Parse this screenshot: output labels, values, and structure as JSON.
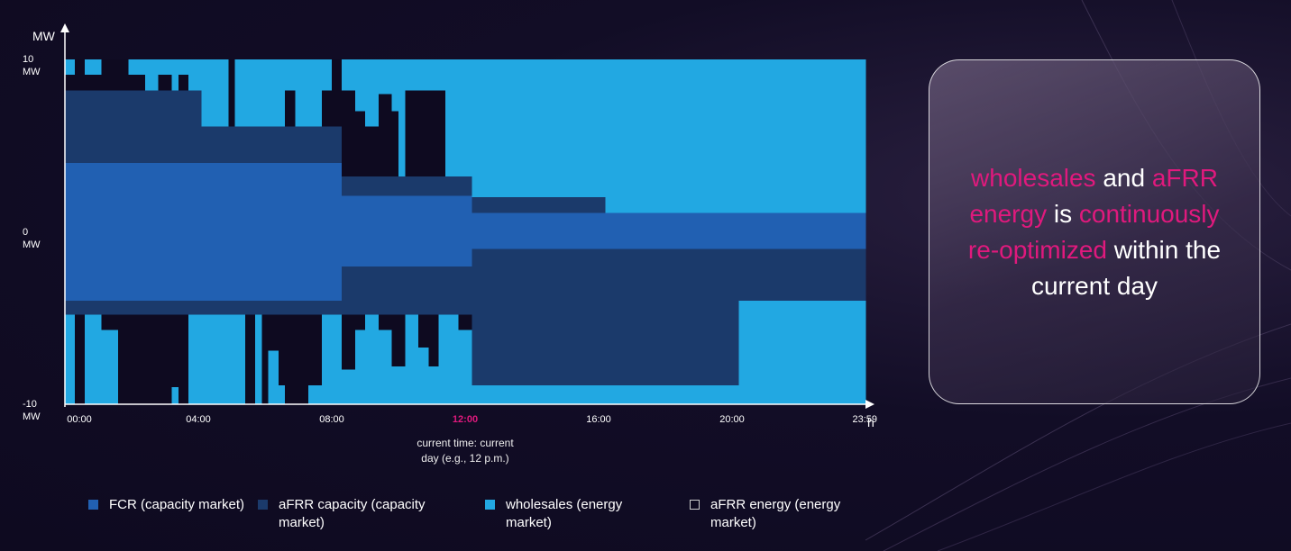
{
  "chart_data": {
    "type": "stacked-step",
    "y_label": "MW",
    "x_label": "h",
    "xlim": [
      0,
      24
    ],
    "ylim": [
      -10,
      10
    ],
    "xticks": [
      {
        "value": 0,
        "label": "00:00"
      },
      {
        "value": 4,
        "label": "04:00"
      },
      {
        "value": 8,
        "label": "08:00"
      },
      {
        "value": 12,
        "label": "12:00"
      },
      {
        "value": 16,
        "label": "16:00"
      },
      {
        "value": 20,
        "label": "20:00"
      },
      {
        "value": 23.98,
        "label": "23:59"
      }
    ],
    "yticks": [
      {
        "value": 10,
        "label": "10 MW"
      },
      {
        "value": 0,
        "label": "0 MW"
      },
      {
        "value": -10,
        "label": "-10 MW"
      }
    ],
    "annotation": {
      "x": 12,
      "text": "current time: current day (e.g., 12 p.m.)",
      "color": "#e0197d"
    },
    "x": [
      0,
      0.3,
      0.6,
      1.1,
      1.6,
      1.9,
      2.4,
      2.8,
      3.2,
      3.4,
      3.7,
      4.1,
      4.9,
      5.1,
      5.4,
      5.7,
      5.9,
      6.1,
      6.4,
      6.6,
      6.9,
      7.3,
      7.7,
      8.0,
      8.3,
      8.7,
      9.0,
      9.4,
      9.8,
      10.0,
      10.2,
      10.6,
      10.9,
      11.2,
      11.4,
      11.8,
      12.2,
      16.2,
      20.2,
      24
    ],
    "series": [
      {
        "name": "FCR (capacity market)",
        "color": "#2160b2",
        "up": [
          4,
          4,
          4,
          4,
          4,
          4,
          4,
          4,
          4,
          4,
          4,
          4,
          4,
          4,
          4,
          4,
          4,
          4,
          4,
          4,
          4,
          4,
          4,
          4,
          2.1,
          2.1,
          2.1,
          2.1,
          2.1,
          2.1,
          2.1,
          2.1,
          2.1,
          2.1,
          2.1,
          2.1,
          1.1,
          1.1,
          1.1
        ],
        "down": [
          -4,
          -4,
          -4,
          -4,
          -4,
          -4,
          -4,
          -4,
          -4,
          -4,
          -4,
          -4,
          -4,
          -4,
          -4,
          -4,
          -4,
          -4,
          -4,
          -4,
          -4,
          -4,
          -4,
          -4,
          -2,
          -2,
          -2,
          -2,
          -2,
          -2,
          -2,
          -2,
          -2,
          -2,
          -2,
          -2,
          -1,
          -1,
          -1
        ]
      },
      {
        "name": "aFRR capacity (capacity market)",
        "color": "#1b3a6b",
        "up": [
          4.2,
          4.2,
          4.2,
          4.2,
          4.2,
          4.2,
          4.2,
          4.2,
          4.2,
          4.2,
          4.2,
          2.1,
          2.1,
          2.1,
          2.1,
          2.1,
          2.1,
          2.1,
          2.1,
          2.1,
          2.1,
          2.1,
          2.1,
          2.1,
          1.1,
          1.1,
          1.1,
          1.1,
          1.1,
          1.1,
          1.1,
          1.1,
          1.1,
          1.1,
          1.1,
          1.1,
          0.9,
          0,
          0
        ],
        "down": [
          -0.8,
          -0.8,
          -0.8,
          -0.8,
          -0.8,
          -0.8,
          -0.8,
          -0.8,
          -0.8,
          -0.8,
          -0.8,
          -0.8,
          -0.8,
          -0.8,
          -0.8,
          -0.8,
          -0.8,
          -0.8,
          -0.8,
          -0.8,
          -0.8,
          -0.8,
          -0.8,
          -0.8,
          -2.8,
          -2.8,
          -2.8,
          -2.8,
          -2.8,
          -2.8,
          -2.8,
          -2.8,
          -2.8,
          -2.8,
          -2.8,
          -2.8,
          -7.9,
          -7.9,
          -3.0
        ]
      },
      {
        "name": "wholesales (energy market)",
        "color": "#22a8e2",
        "up": [
          0.9,
          0,
          0.9,
          0,
          0,
          0.9,
          1.8,
          0.9,
          1.8,
          0.9,
          1.8,
          3.9,
          0,
          3.9,
          3.9,
          3.9,
          3.9,
          3.9,
          3.9,
          1.8,
          3.9,
          3.9,
          1.8,
          0,
          1.8,
          3.0,
          3.9,
          2.0,
          3.0,
          6.8,
          1.8,
          1.8,
          1.8,
          1.8,
          6.8,
          6.8,
          8.0,
          8.9,
          8.9
        ],
        "down": [
          -5.2,
          0,
          -5.2,
          -4.3,
          0,
          0,
          0,
          0,
          -1.0,
          0,
          -5.2,
          -5.2,
          -5.2,
          -5.2,
          0,
          -5.2,
          0,
          -3.1,
          -1.1,
          0,
          0,
          -1.1,
          -5.2,
          -5.2,
          -2.0,
          -4.3,
          -5.2,
          -4.3,
          -2.2,
          -2.2,
          -5.2,
          -3.3,
          -2.2,
          -5.2,
          -5.2,
          -4.3,
          -1.1,
          -1.1,
          -6.0
        ]
      },
      {
        "name": "aFRR energy (energy market)",
        "color": "#0e0a20",
        "up": [
          0.9,
          1.8,
          0.9,
          1.8,
          1.8,
          0.9,
          0,
          0.9,
          0,
          0.9,
          0,
          0,
          3.9,
          0,
          0,
          0,
          0,
          0,
          0,
          2.1,
          0,
          0,
          2.1,
          3.9,
          5.0,
          3.8,
          2.9,
          4.8,
          3.8,
          0,
          5.0,
          5.0,
          5.0,
          5.0,
          0,
          0,
          0,
          0,
          0
        ],
        "down": [
          0,
          -5.2,
          0,
          -0.9,
          -5.2,
          -5.2,
          -5.2,
          -5.2,
          -4.2,
          -5.2,
          0,
          0,
          0,
          0,
          -5.2,
          0,
          -5.2,
          -2.1,
          -4.1,
          -5.2,
          -5.2,
          -4.1,
          0,
          0,
          -3.2,
          -0.9,
          0,
          -0.9,
          -3.0,
          -3.0,
          0,
          -1.9,
          -3.0,
          0,
          0,
          -0.9,
          0,
          0,
          0
        ]
      }
    ]
  },
  "callout": {
    "highlight_color": "#e0197d",
    "segments": [
      {
        "text": "wholesales",
        "highlight": true
      },
      {
        "text": " and ",
        "highlight": false
      },
      {
        "text": "aFRR energy",
        "highlight": true
      },
      {
        "text": " is ",
        "highlight": false
      },
      {
        "text": "continuously re-optimized",
        "highlight": true
      },
      {
        "text": " within the current day",
        "highlight": false
      }
    ]
  }
}
